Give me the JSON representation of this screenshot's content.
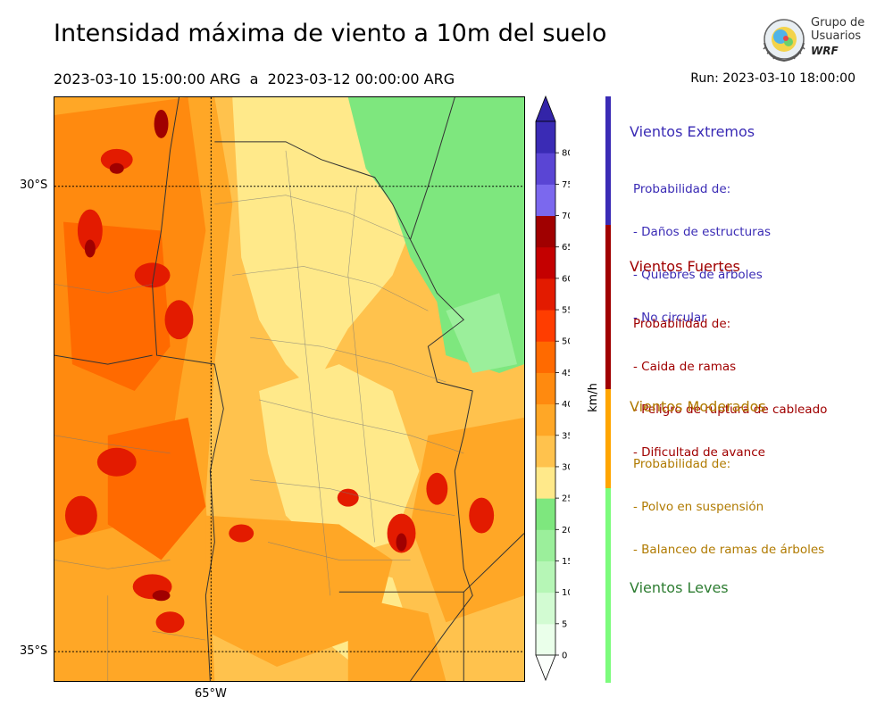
{
  "title": "Intensidad máxima de viento a 10m del suelo",
  "subtitle": "2023-03-10 15:00:00 ARG  a  2023-03-12 00:00:00 ARG",
  "run": "Run: 2023-03-10 18:00:00",
  "logo": {
    "line1": "Grupo de",
    "line2": "Usuarios",
    "line3": "WRF"
  },
  "map": {
    "lat_labels": [
      "30°S",
      "35°S"
    ],
    "lon_labels": [
      "65°W"
    ]
  },
  "colorbar": {
    "unit": "km/h",
    "ticks": [
      "0",
      "5",
      "10",
      "15",
      "20",
      "25",
      "30",
      "35",
      "40",
      "45",
      "50",
      "55",
      "60",
      "65",
      "70",
      "75",
      "80"
    ],
    "colors": [
      "#eaffea",
      "#d2fbd2",
      "#b6f6b6",
      "#9bef9b",
      "#7ee77e",
      "#ffe98a",
      "#ffc24d",
      "#ffa726",
      "#ff8a0f",
      "#ff6a00",
      "#ff3d00",
      "#e31b00",
      "#c40000",
      "#a00000",
      "#7b68ee",
      "#5a45d4",
      "#3a2bb5"
    ],
    "extend_low": "#fbfffb",
    "extend_high": "#3324a8"
  },
  "legend": {
    "categories": [
      {
        "title": "Vientos Extremos",
        "color": "#3a2bb5",
        "lines": [
          "Probabilidad de:",
          "- Daños de estructuras",
          "- Quiebres de árboles",
          "- No circular"
        ]
      },
      {
        "title": "Vientos Fuertes",
        "color": "#a00000",
        "lines": [
          "Probabilidad de:",
          "- Caida de ramas",
          "- Peligro de ruptura de cableado",
          "- Dificultad de avance"
        ]
      },
      {
        "title": "Vientos Moderados",
        "color": "#b07a00",
        "bar": "#ffa500",
        "lines": [
          "Probabilidad de:",
          "- Polvo en suspensión",
          "- Balanceo de ramas de árboles"
        ]
      },
      {
        "title": "Vientos Leves",
        "color": "#2e7d32",
        "bar": "#7cfc7c",
        "lines": []
      }
    ]
  }
}
